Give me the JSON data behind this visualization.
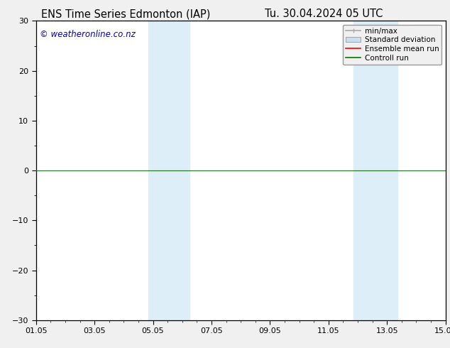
{
  "title_left": "ENS Time Series Edmonton (IAP)",
  "title_right": "Tu. 30.04.2024 05 UTC",
  "xlabel": "",
  "ylabel": "",
  "ylim": [
    -30,
    30
  ],
  "yticks": [
    -30,
    -20,
    -10,
    0,
    10,
    20,
    30
  ],
  "xtick_labels": [
    "01.05",
    "03.05",
    "05.05",
    "07.05",
    "09.05",
    "11.05",
    "13.05",
    "15.05"
  ],
  "xtick_positions": [
    0,
    2,
    4,
    6,
    8,
    10,
    12,
    14
  ],
  "shaded_bands": [
    {
      "x_start": 3.85,
      "x_end": 5.25
    },
    {
      "x_start": 10.85,
      "x_end": 12.35
    }
  ],
  "shaded_color": "#ddeef8",
  "zero_line_color": "#2d7a2d",
  "watermark_text": "© weatheronline.co.nz",
  "watermark_color": "#0000cc",
  "background_color": "#f0f0f0",
  "plot_bg_color": "#ffffff",
  "border_color": "#000000",
  "legend_items": [
    {
      "label": "min/max",
      "color": "#aaaaaa",
      "lw": 1.2
    },
    {
      "label": "Standard deviation",
      "color": "#c8dff0",
      "lw": 6
    },
    {
      "label": "Ensemble mean run",
      "color": "#ff0000",
      "lw": 1.2
    },
    {
      "label": "Controll run",
      "color": "#007700",
      "lw": 1.2
    }
  ],
  "title_fontsize": 10.5,
  "axis_fontsize": 8,
  "watermark_fontsize": 8.5,
  "legend_fontsize": 7.5
}
